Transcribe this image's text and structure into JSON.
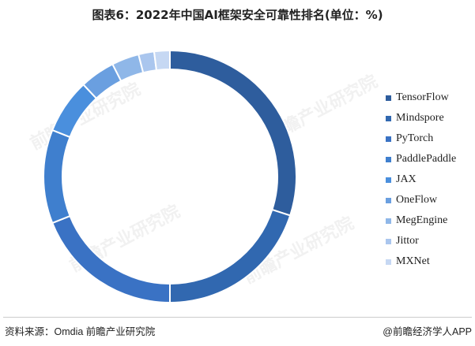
{
  "title": "图表6：2022年中国AI框架安全可靠性排名(单位：%)",
  "chart_data": {
    "type": "pie",
    "donut": true,
    "title": "图表6：2022年中国AI框架安全可靠性排名(单位：%)",
    "labels": [
      "TensorFlow",
      "Mindspore",
      "PyTorch",
      "PaddlePaddle",
      "JAX",
      "OneFlow",
      "MegEngine",
      "Jittor",
      "MXNet"
    ],
    "values": [
      30.0,
      20.0,
      19.0,
      12.0,
      7.0,
      4.5,
      3.5,
      2.0,
      2.0
    ],
    "colors": [
      "#2e5d9d",
      "#3168b0",
      "#3a72c4",
      "#3f7fce",
      "#4a8fdd",
      "#6a9fe0",
      "#8fb7e8",
      "#aac6ee",
      "#c6d8f3"
    ],
    "legend_position": "right"
  },
  "watermark": {
    "text": "前瞻产业研究院"
  },
  "footer": {
    "source": "资料来源：Omdia 前瞻产业研究院",
    "brand": "@前瞻经济学人APP"
  }
}
